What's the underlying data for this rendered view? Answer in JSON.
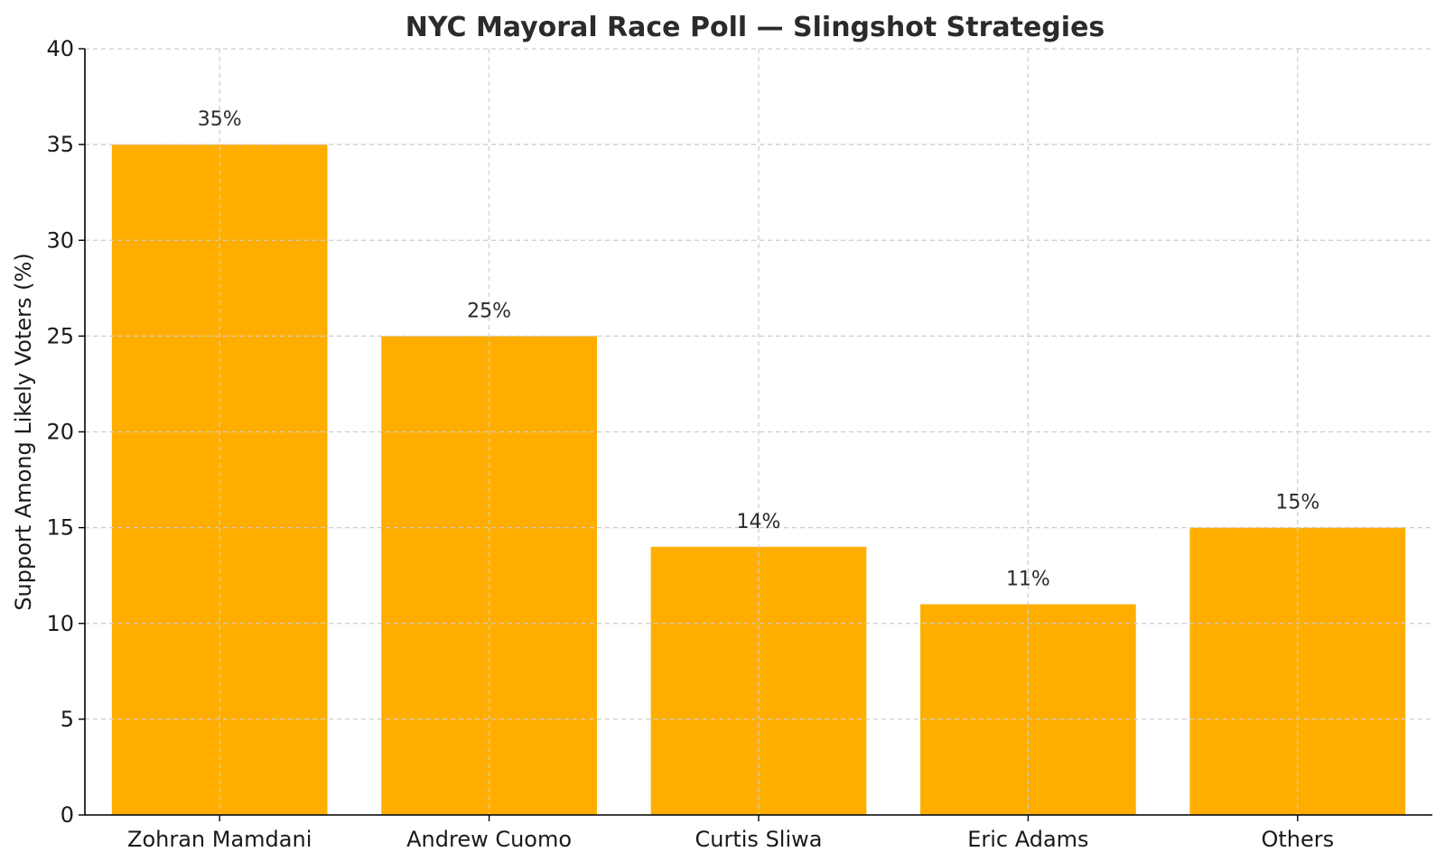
{
  "chart_data": {
    "type": "bar",
    "title": "NYC Mayoral Race Poll — Slingshot Strategies",
    "xlabel": "",
    "ylabel": "Support Among Likely Voters (%)",
    "categories": [
      "Zohran Mamdani",
      "Andrew Cuomo",
      "Curtis Sliwa",
      "Eric Adams",
      "Others"
    ],
    "values": [
      35,
      25,
      14,
      11,
      15
    ],
    "value_labels": [
      "35%",
      "25%",
      "14%",
      "11%",
      "15%"
    ],
    "ylim": [
      0,
      40
    ],
    "yticks": [
      0,
      5,
      10,
      15,
      20,
      25,
      30,
      35,
      40
    ],
    "ytick_labels": [
      "0",
      "5",
      "10",
      "15",
      "20",
      "25",
      "30",
      "35",
      "40"
    ],
    "bar_color": "#FFAE00",
    "grid": true,
    "legend": "none"
  }
}
